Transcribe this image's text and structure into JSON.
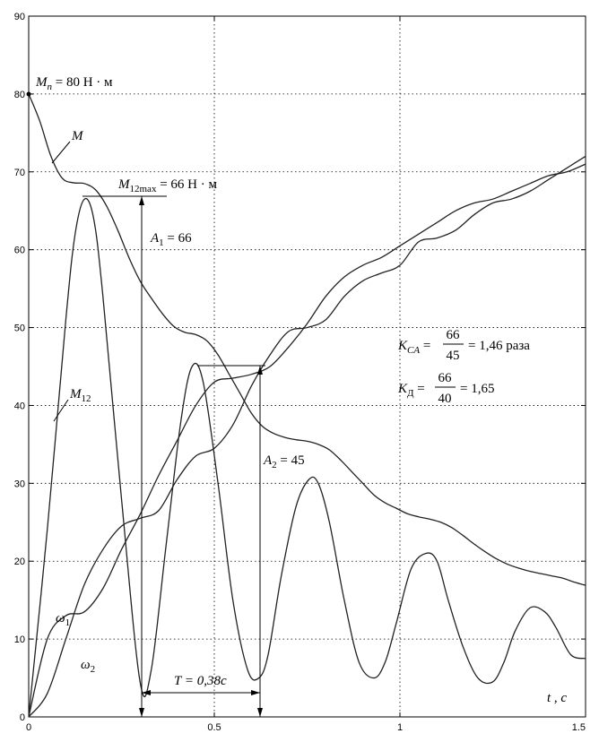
{
  "chart_data": {
    "type": "line",
    "title": "",
    "xlabel": "t , c",
    "ylabel": "",
    "xlim": [
      0,
      1.5
    ],
    "ylim": [
      0,
      90
    ],
    "grid": true,
    "x_ticks": [
      0,
      0.5,
      1,
      1.5
    ],
    "x_tick_labels": [
      "0",
      "0.5",
      "1",
      "1.5"
    ],
    "y_ticks": [
      0,
      10,
      20,
      30,
      40,
      50,
      60,
      70,
      80,
      90
    ],
    "y_tick_labels": [
      "0",
      "10",
      "20",
      "30",
      "40",
      "50",
      "60",
      "70",
      "80",
      "90"
    ],
    "series": [
      {
        "name": "M",
        "x": [
          0,
          0.03,
          0.06,
          0.09,
          0.12,
          0.15,
          0.18,
          0.21,
          0.24,
          0.27,
          0.3,
          0.33,
          0.36,
          0.39,
          0.42,
          0.45,
          0.48,
          0.51,
          0.54,
          0.57,
          0.6,
          0.63,
          0.66,
          0.69,
          0.72,
          0.75,
          0.78,
          0.81,
          0.84,
          0.87,
          0.9,
          0.93,
          0.96,
          0.99,
          1.02,
          1.05,
          1.08,
          1.11,
          1.14,
          1.17,
          1.2,
          1.23,
          1.26,
          1.29,
          1.32,
          1.35,
          1.38,
          1.41,
          1.44,
          1.47,
          1.5
        ],
        "values": [
          80,
          76.5,
          72,
          69.2,
          68.6,
          68.5,
          67.7,
          65.6,
          62.5,
          59,
          56,
          53.8,
          51.8,
          50.2,
          49.4,
          49.1,
          48.3,
          46.5,
          44,
          41.5,
          39,
          37.3,
          36.4,
          35.9,
          35.6,
          35.4,
          35,
          34.3,
          33,
          31.5,
          30,
          28.5,
          27.5,
          26.8,
          26.1,
          25.7,
          25.4,
          25,
          24.3,
          23.3,
          22.2,
          21.2,
          20.3,
          19.6,
          19.1,
          18.7,
          18.4,
          18.1,
          17.8,
          17.3,
          16.9
        ]
      },
      {
        "name": "M₁₂",
        "x": [
          0,
          0.05,
          0.1,
          0.125,
          0.15,
          0.175,
          0.2,
          0.25,
          0.3,
          0.33,
          0.37,
          0.41,
          0.44,
          0.47,
          0.51,
          0.55,
          0.59,
          0.62,
          0.645,
          0.68,
          0.72,
          0.755,
          0.78,
          0.81,
          0.85,
          0.89,
          0.93,
          0.96,
          0.99,
          1.03,
          1.07,
          1.1,
          1.13,
          1.17,
          1.21,
          1.25,
          1.28,
          1.31,
          1.35,
          1.39,
          1.42,
          1.46,
          1.5
        ],
        "values": [
          0,
          24,
          51,
          62,
          66.5,
          64,
          54,
          28,
          4.5,
          6,
          22,
          38,
          45,
          43,
          30,
          15,
          6,
          5,
          8,
          18,
          27,
          30.5,
          30,
          25,
          15,
          7,
          5,
          7,
          12,
          19,
          21,
          20,
          15,
          9,
          5,
          4.5,
          7,
          11,
          14,
          13.5,
          11.5,
          8,
          7.5
        ]
      },
      {
        "name": "ω₁",
        "x": [
          0,
          0.05,
          0.1,
          0.15,
          0.2,
          0.25,
          0.3,
          0.35,
          0.4,
          0.45,
          0.5,
          0.55,
          0.6,
          0.65,
          0.7,
          0.75,
          0.8,
          0.85,
          0.9,
          0.95,
          1,
          1.05,
          1.1,
          1.15,
          1.2,
          1.25,
          1.3,
          1.35,
          1.4,
          1.45,
          1.5
        ],
        "values": [
          0,
          10,
          13,
          13.5,
          16.5,
          21.5,
          26,
          31,
          35.5,
          40,
          43,
          43.5,
          44,
          45,
          47.5,
          50.5,
          54,
          56.5,
          58,
          59,
          60.5,
          62,
          63.5,
          65,
          66,
          66.5,
          67.5,
          68.5,
          69.5,
          70,
          71
        ]
      },
      {
        "name": "ω₂",
        "x": [
          0,
          0.05,
          0.1,
          0.15,
          0.2,
          0.25,
          0.3,
          0.35,
          0.4,
          0.45,
          0.5,
          0.55,
          0.6,
          0.65,
          0.7,
          0.75,
          0.8,
          0.85,
          0.9,
          0.95,
          1,
          1.05,
          1.1,
          1.15,
          1.2,
          1.25,
          1.3,
          1.35,
          1.4,
          1.45,
          1.5
        ],
        "values": [
          0,
          3,
          10,
          17,
          21.5,
          24.5,
          25.5,
          26.5,
          30.5,
          33.5,
          34.5,
          37.5,
          42.5,
          46.5,
          49.5,
          50,
          51,
          54,
          56,
          57,
          58,
          61,
          61.5,
          62.5,
          64.5,
          66,
          66.5,
          67.5,
          69,
          70.5,
          72
        ]
      }
    ],
    "annotations": {
      "mn": "Mп = 80 Н · м",
      "m12max": "M12max = 66 Н · м",
      "a1": "A1 = 66",
      "a2": "A2 = 45",
      "period": "T = 0,38c",
      "kca": "KCA = 66/45 = 1,46 раза",
      "kd": "KД = 66/40 = 1,65"
    }
  },
  "labels": {
    "mn_m": "M",
    "mn_sub": "п",
    "mn_rest": " = 80 Н · м",
    "m12max_m": "M",
    "m12max_sub": "12max",
    "m12max_rest": " = 66 Н · м",
    "a1_a": "A",
    "a1_sub": "1",
    "a1_rest": " = 66",
    "a2_a": "A",
    "a2_sub": "2",
    "a2_rest": " = 45",
    "period": "T = 0,38c",
    "kca_k": "K",
    "kca_sub": "CA",
    "kca_num": "66",
    "kca_den": "45",
    "kca_rest": "= 1,46 раза",
    "kd_k": "K",
    "kd_sub": "Д",
    "kd_num": "66",
    "kd_den": "40",
    "kd_rest": "= 1,65",
    "label_m": "M",
    "label_m12": "M",
    "label_m12_sub": "12",
    "label_w1": "ω",
    "label_w1_sub": "1",
    "label_w2": "ω",
    "label_w2_sub": "2",
    "xaxis": "t , c"
  }
}
